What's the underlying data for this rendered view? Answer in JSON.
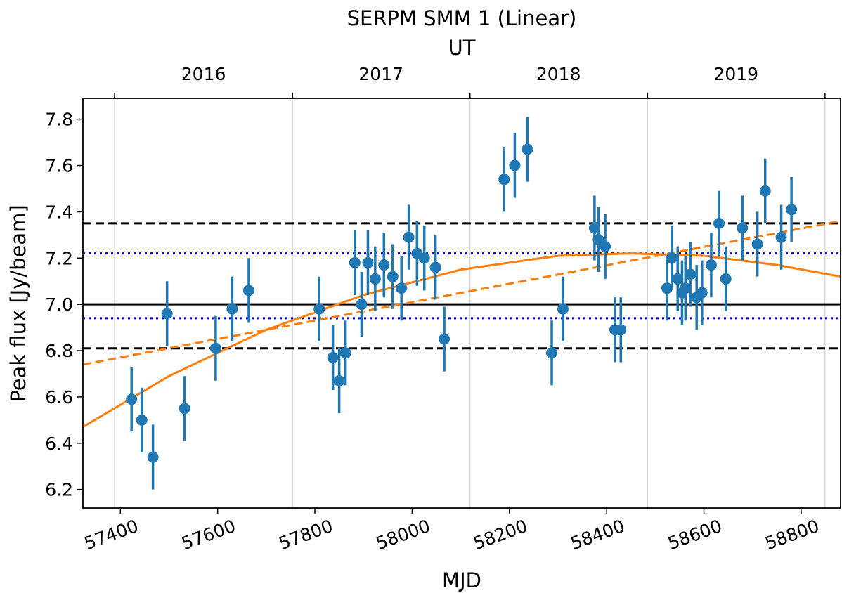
{
  "chart_data": {
    "type": "scatter",
    "title": "SERPM SMM 1 (Linear)",
    "xlabel": "MJD",
    "ylabel": "Peak flux [Jy/beam]",
    "xlim": [
      57323,
      58881
    ],
    "ylim": [
      6.12,
      7.89
    ],
    "xticks": [
      57400,
      57600,
      57800,
      58000,
      58200,
      58400,
      58600,
      58800
    ],
    "yticks": [
      {
        "value": 6.2,
        "label": "6.2"
      },
      {
        "value": 6.4,
        "label": "6.4"
      },
      {
        "value": 6.6,
        "label": "6.6"
      },
      {
        "value": 6.8,
        "label": "6.8"
      },
      {
        "value": 7.0,
        "label": "7.0"
      },
      {
        "value": 7.2,
        "label": "7.2"
      },
      {
        "value": 7.4,
        "label": "7.4"
      },
      {
        "value": 7.6,
        "label": "7.6"
      },
      {
        "value": 7.8,
        "label": "7.8"
      }
    ],
    "top_axis": {
      "label": "UT",
      "ticks": [
        57388,
        57754,
        58119,
        58484,
        58849
      ],
      "labels": [
        {
          "value": 57571,
          "label": "2016"
        },
        {
          "value": 57936,
          "label": "2017"
        },
        {
          "value": 58301,
          "label": "2018"
        },
        {
          "value": 58666,
          "label": "2019"
        }
      ],
      "grid": true
    },
    "series": [
      {
        "color": "#1f77b4",
        "x": [
          57423,
          57444,
          57467,
          57496,
          57532,
          57596,
          57630,
          57664,
          57809,
          57837,
          57850,
          57863,
          57882,
          57896,
          57909,
          57924,
          57942,
          57960,
          57978,
          57993,
          58010,
          58025,
          58048,
          58066,
          58189,
          58211,
          58237,
          58287,
          58310,
          58375,
          58383,
          58397,
          58417,
          58429,
          58524,
          58534,
          58546,
          58555,
          58562,
          58572,
          58585,
          58596,
          58615,
          58631,
          58645,
          58679,
          58710,
          58726,
          58759,
          58780
        ],
        "values": [
          6.59,
          6.5,
          6.34,
          6.96,
          6.55,
          6.81,
          6.98,
          7.06,
          6.98,
          6.77,
          6.67,
          6.79,
          7.18,
          7.0,
          7.18,
          7.11,
          7.17,
          7.12,
          7.07,
          7.29,
          7.22,
          7.2,
          7.16,
          6.85,
          7.54,
          7.6,
          7.67,
          6.79,
          6.98,
          7.33,
          7.28,
          7.25,
          6.89,
          6.89,
          7.07,
          7.2,
          7.11,
          7.05,
          7.07,
          7.13,
          7.03,
          7.05,
          7.17,
          7.35,
          7.11,
          7.33,
          7.26,
          7.49,
          7.29,
          7.41
        ],
        "errors": [
          0.14,
          0.14,
          0.14,
          0.14,
          0.14,
          0.14,
          0.14,
          0.14,
          0.14,
          0.14,
          0.14,
          0.14,
          0.14,
          0.14,
          0.14,
          0.14,
          0.14,
          0.14,
          0.14,
          0.14,
          0.14,
          0.14,
          0.14,
          0.14,
          0.14,
          0.14,
          0.14,
          0.14,
          0.14,
          0.14,
          0.14,
          0.14,
          0.14,
          0.14,
          0.14,
          0.14,
          0.14,
          0.14,
          0.14,
          0.14,
          0.14,
          0.14,
          0.14,
          0.14,
          0.14,
          0.14,
          0.14,
          0.14,
          0.14,
          0.14
        ]
      }
    ],
    "hlines": [
      {
        "y": 7.0,
        "color": "#000000",
        "style": "solid"
      },
      {
        "y": 7.22,
        "color": "#0000dd",
        "style": "dotted"
      },
      {
        "y": 6.94,
        "color": "#0000dd",
        "style": "dotted"
      },
      {
        "y": 7.35,
        "color": "#000000",
        "style": "dashed"
      },
      {
        "y": 6.81,
        "color": "#000000",
        "style": "dashed"
      }
    ],
    "fits": [
      {
        "color": "#ff7f0e",
        "style": "solid",
        "x": [
          57323,
          57500,
          57700,
          57900,
          58100,
          58300,
          58450,
          58600,
          58750,
          58881
        ],
        "values": [
          6.47,
          6.69,
          6.89,
          7.04,
          7.15,
          7.21,
          7.22,
          7.21,
          7.17,
          7.12
        ]
      },
      {
        "color": "#ff7f0e",
        "style": "dashed",
        "x": [
          57323,
          58881
        ],
        "values": [
          6.74,
          7.36
        ]
      }
    ]
  }
}
